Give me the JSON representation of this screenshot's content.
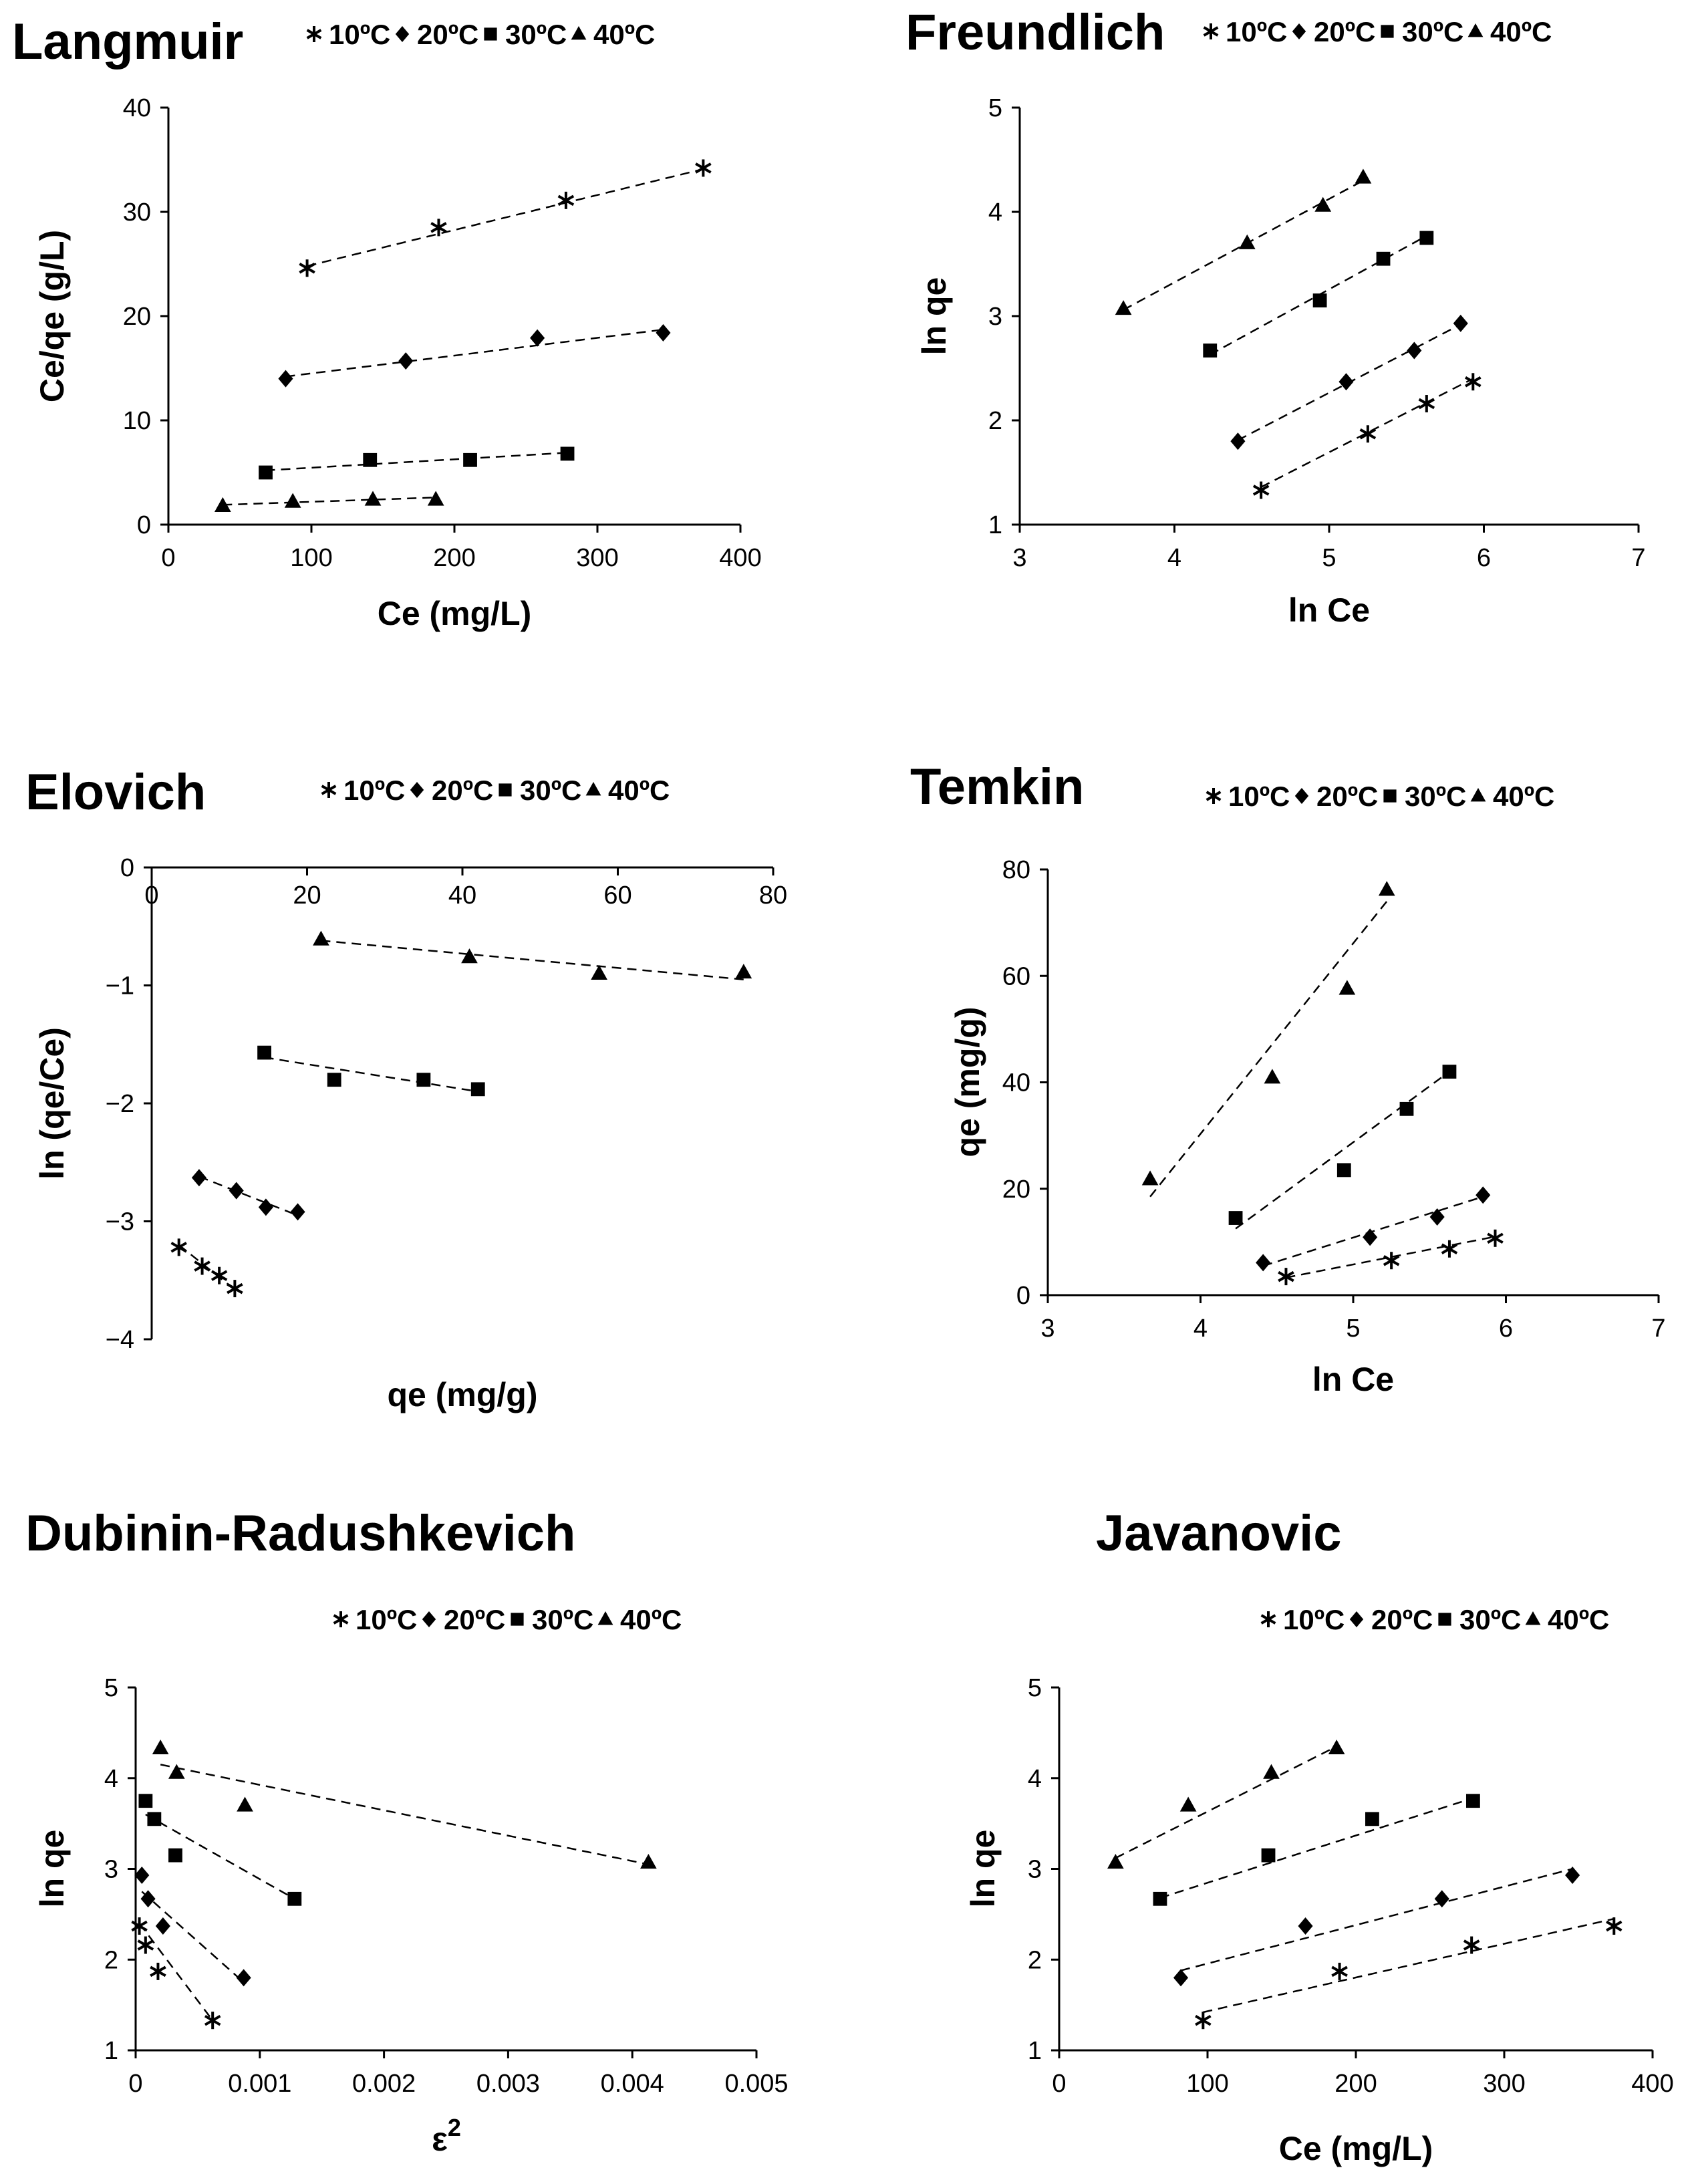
{
  "legend_labels": [
    "10ºC",
    "20ºC",
    "30ºC",
    "40ºC"
  ],
  "legend_markers": [
    "asterisk",
    "diamond",
    "square",
    "triangle"
  ],
  "colors": {
    "ink": "#000000",
    "background": "#ffffff"
  },
  "chart_data": [
    {
      "type": "scatter",
      "title": "Langmuir",
      "xlabel": "Ce (mg/L)",
      "ylabel": "Ce/qe (g/L)",
      "xlim": [
        0,
        400
      ],
      "ylim": [
        0,
        40
      ],
      "xticks": [
        "0",
        "100",
        "200",
        "300",
        "400"
      ],
      "yticks": [
        "0",
        "10",
        "20",
        "30",
        "40"
      ],
      "xaxis_at_top": false,
      "grid": false,
      "legend": "top",
      "series": [
        {
          "name": "10ºC",
          "x": [
            97,
            189,
            278,
            374
          ],
          "y": [
            24.6,
            28.5,
            31.1,
            34.2
          ],
          "trend": [
            [
              97,
              24.8
            ],
            [
              374,
              34.1
            ]
          ]
        },
        {
          "name": "20ºC",
          "x": [
            82,
            166,
            258,
            346
          ],
          "y": [
            14.0,
            15.7,
            17.9,
            18.4
          ],
          "trend": [
            [
              82,
              14.2
            ],
            [
              346,
              18.7
            ]
          ]
        },
        {
          "name": "30ºC",
          "x": [
            68,
            141,
            211,
            279
          ],
          "y": [
            5.0,
            6.2,
            6.2,
            6.8
          ],
          "trend": [
            [
              68,
              5.2
            ],
            [
              279,
              6.9
            ]
          ]
        },
        {
          "name": "40ºC",
          "x": [
            38,
            87,
            143,
            187
          ],
          "y": [
            1.8,
            2.2,
            2.4,
            2.4
          ],
          "trend": [
            [
              38,
              1.9
            ],
            [
              187,
              2.6
            ]
          ]
        }
      ]
    },
    {
      "type": "scatter",
      "title": "Freundlich",
      "xlabel": "ln Ce",
      "ylabel": "ln qe",
      "xlim": [
        3,
        7
      ],
      "ylim": [
        1,
        5
      ],
      "xticks": [
        "3",
        "4",
        "5",
        "6",
        "7"
      ],
      "yticks": [
        "1",
        "2",
        "3",
        "4",
        "5"
      ],
      "xaxis_at_top": false,
      "grid": false,
      "legend": "top",
      "series": [
        {
          "name": "10ºC",
          "x": [
            4.56,
            5.25,
            5.63,
            5.93
          ],
          "y": [
            1.33,
            1.87,
            2.16,
            2.37
          ],
          "trend": [
            [
              4.56,
              1.36
            ],
            [
              5.93,
              2.4
            ]
          ]
        },
        {
          "name": "20ºC",
          "x": [
            4.41,
            5.11,
            5.55,
            5.85
          ],
          "y": [
            1.8,
            2.37,
            2.67,
            2.93
          ],
          "trend": [
            [
              4.41,
              1.81
            ],
            [
              5.85,
              2.92
            ]
          ]
        },
        {
          "name": "30ºC",
          "x": [
            4.23,
            4.94,
            5.35,
            5.63
          ],
          "y": [
            2.67,
            3.15,
            3.55,
            3.75
          ],
          "trend": [
            [
              4.23,
              2.63
            ],
            [
              5.63,
              3.77
            ]
          ]
        },
        {
          "name": "40ºC",
          "x": [
            3.67,
            4.47,
            4.96,
            5.22
          ],
          "y": [
            3.07,
            3.7,
            4.06,
            4.33
          ],
          "trend": [
            [
              3.67,
              3.06
            ],
            [
              5.22,
              4.3
            ]
          ]
        }
      ]
    },
    {
      "type": "scatter",
      "title": "Elovich",
      "xlabel": "qe (mg/g)",
      "ylabel": "ln (qe/Ce)",
      "xlim": [
        0,
        80
      ],
      "ylim": [
        -4,
        0
      ],
      "xticks": [
        "0",
        "20",
        "40",
        "60",
        "80"
      ],
      "yticks": [
        "−4",
        "−3",
        "−2",
        "−1",
        "0"
      ],
      "xaxis_at_top": true,
      "grid": false,
      "legend": "top",
      "series": [
        {
          "name": "10ºC",
          "x": [
            3.5,
            6.5,
            8.7,
            10.7
          ],
          "y": [
            -3.22,
            -3.38,
            -3.46,
            -3.57
          ],
          "trend": [
            [
              3.5,
              -3.2
            ],
            [
              10.7,
              -3.58
            ]
          ]
        },
        {
          "name": "20ºC",
          "x": [
            6.1,
            10.9,
            14.7,
            18.8
          ],
          "y": [
            -2.63,
            -2.74,
            -2.88,
            -2.92
          ],
          "trend": [
            [
              6.1,
              -2.62
            ],
            [
              18.8,
              -2.95
            ]
          ]
        },
        {
          "name": "30ºC",
          "x": [
            14.5,
            23.5,
            35.0,
            42.0
          ],
          "y": [
            -1.57,
            -1.8,
            -1.8,
            -1.88
          ],
          "trend": [
            [
              14.5,
              -1.61
            ],
            [
              42.0,
              -1.9
            ]
          ]
        },
        {
          "name": "40ºC",
          "x": [
            21.8,
            40.9,
            57.6,
            76.2
          ],
          "y": [
            -0.61,
            -0.76,
            -0.9,
            -0.89
          ],
          "trend": [
            [
              21.8,
              -0.62
            ],
            [
              76.2,
              -0.95
            ]
          ]
        }
      ]
    },
    {
      "type": "scatter",
      "title": "Temkin",
      "xlabel": "ln Ce",
      "ylabel": "qe (mg/g)",
      "xlim": [
        3,
        7
      ],
      "ylim": [
        0,
        80
      ],
      "xticks": [
        "3",
        "4",
        "5",
        "6",
        "7"
      ],
      "yticks": [
        "0",
        "20",
        "40",
        "60",
        "80"
      ],
      "xaxis_at_top": false,
      "grid": false,
      "legend": "top",
      "series": [
        {
          "name": "10ºC",
          "x": [
            4.56,
            5.25,
            5.63,
            5.93
          ],
          "y": [
            3.5,
            6.5,
            8.7,
            10.7
          ],
          "trend": [
            [
              4.56,
              3.3
            ],
            [
              5.93,
              11.0
            ]
          ]
        },
        {
          "name": "20ºC",
          "x": [
            4.41,
            5.11,
            5.55,
            5.85
          ],
          "y": [
            6.1,
            10.9,
            14.7,
            18.8
          ],
          "trend": [
            [
              4.41,
              5.5
            ],
            [
              5.85,
              18.5
            ]
          ]
        },
        {
          "name": "30ºC",
          "x": [
            4.23,
            4.94,
            5.35,
            5.63
          ],
          "y": [
            14.5,
            23.5,
            35.0,
            42.0
          ],
          "trend": [
            [
              4.23,
              12.5
            ],
            [
              5.63,
              42.0
            ]
          ]
        },
        {
          "name": "40ºC",
          "x": [
            3.67,
            4.47,
            4.96,
            5.22
          ],
          "y": [
            21.8,
            40.9,
            57.6,
            76.2
          ],
          "trend": [
            [
              3.67,
              18.5
            ],
            [
              5.22,
              74.0
            ]
          ]
        }
      ]
    },
    {
      "type": "scatter",
      "title": "Dubinin-Radushkevich",
      "xlabel": "ε",
      "xlabel_superscript": "2",
      "ylabel": "ln qe",
      "xlim": [
        0,
        0.005
      ],
      "ylim": [
        1,
        5
      ],
      "xticks": [
        "0",
        "0.001",
        "0.002",
        "0.003",
        "0.004",
        "0.005"
      ],
      "yticks": [
        "1",
        "2",
        "3",
        "4",
        "5"
      ],
      "xaxis_at_top": false,
      "grid": false,
      "legend": "top",
      "series": [
        {
          "name": "10ºC",
          "x": [
            3e-05,
            8e-05,
            0.00018,
            0.00062
          ],
          "y": [
            2.37,
            2.16,
            1.87,
            1.33
          ],
          "trend": [
            [
              3e-05,
              2.4
            ],
            [
              0.00062,
              1.33
            ]
          ]
        },
        {
          "name": "20ºC",
          "x": [
            5e-05,
            0.0001,
            0.00022,
            0.00087
          ],
          "y": [
            2.93,
            2.67,
            2.37,
            1.8
          ],
          "trend": [
            [
              5e-05,
              2.75
            ],
            [
              0.00087,
              1.75
            ]
          ]
        },
        {
          "name": "30ºC",
          "x": [
            8e-05,
            0.00015,
            0.00032,
            0.00128
          ],
          "y": [
            3.75,
            3.55,
            3.15,
            2.67
          ],
          "trend": [
            [
              8e-05,
              3.6
            ],
            [
              0.00128,
              2.67
            ]
          ]
        },
        {
          "name": "40ºC",
          "x": [
            0.0002,
            0.00033,
            0.00088,
            0.00413
          ],
          "y": [
            4.33,
            4.06,
            3.7,
            3.07
          ],
          "trend": [
            [
              0.0002,
              4.15
            ],
            [
              0.00413,
              3.05
            ]
          ]
        }
      ]
    },
    {
      "type": "scatter",
      "title": "Javanovic",
      "xlabel": "Ce (mg/L)",
      "ylabel": "ln qe",
      "xlim": [
        0,
        400
      ],
      "ylim": [
        1,
        5
      ],
      "xticks": [
        "0",
        "100",
        "200",
        "300",
        "400"
      ],
      "yticks": [
        "1",
        "2",
        "3",
        "4",
        "5"
      ],
      "xaxis_at_top": false,
      "grid": false,
      "legend": "top",
      "series": [
        {
          "name": "10ºC",
          "x": [
            97,
            189,
            278,
            374
          ],
          "y": [
            1.33,
            1.87,
            2.16,
            2.37
          ],
          "trend": [
            [
              97,
              1.42
            ],
            [
              374,
              2.45
            ]
          ]
        },
        {
          "name": "20ºC",
          "x": [
            82,
            166,
            258,
            346
          ],
          "y": [
            1.8,
            2.37,
            2.67,
            2.93
          ],
          "trend": [
            [
              82,
              1.88
            ],
            [
              346,
              3.0
            ]
          ]
        },
        {
          "name": "30ºC",
          "x": [
            68,
            141,
            211,
            279
          ],
          "y": [
            2.67,
            3.15,
            3.55,
            3.75
          ],
          "trend": [
            [
              68,
              2.68
            ],
            [
              279,
              3.78
            ]
          ]
        },
        {
          "name": "40ºC",
          "x": [
            38,
            87,
            143,
            187
          ],
          "y": [
            3.07,
            3.7,
            4.06,
            4.33
          ],
          "trend": [
            [
              38,
              3.12
            ],
            [
              187,
              4.35
            ]
          ]
        }
      ]
    }
  ]
}
